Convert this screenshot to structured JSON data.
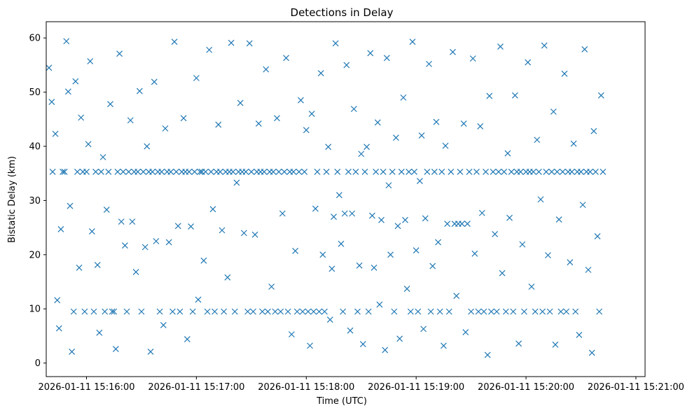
{
  "chart_data": {
    "type": "scatter",
    "title": "Detections in Delay",
    "xlabel": "Time (UTC)",
    "ylabel": "Bistatic Delay (km)",
    "marker": "x",
    "color": "#1f77b4",
    "x_unit": "seconds since 2026-01-11 15:16:00 UTC",
    "xlim": [
      -22,
      305
    ],
    "ylim": [
      -2.5,
      63
    ],
    "x_ticks": [
      {
        "value": 0,
        "label": "2026-01-11 15:16:00"
      },
      {
        "value": 60,
        "label": "2026-01-11 15:17:00"
      },
      {
        "value": 120,
        "label": "2026-01-11 15:18:00"
      },
      {
        "value": 180,
        "label": "2026-01-11 15:19:00"
      },
      {
        "value": 240,
        "label": "2026-01-11 15:20:00"
      },
      {
        "value": 300,
        "label": "2026-01-11 15:21:00"
      }
    ],
    "y_ticks": [
      {
        "value": 0,
        "label": "0"
      },
      {
        "value": 10,
        "label": "10"
      },
      {
        "value": 20,
        "label": "20"
      },
      {
        "value": 30,
        "label": "30"
      },
      {
        "value": 40,
        "label": "40"
      },
      {
        "value": 50,
        "label": "50"
      },
      {
        "value": 60,
        "label": "60"
      }
    ],
    "series": [
      {
        "name": "detections",
        "points": [
          [
            -20.5,
            54.5
          ],
          [
            -19,
            48.2
          ],
          [
            -18.5,
            35.3
          ],
          [
            -17,
            42.3
          ],
          [
            -16,
            11.6
          ],
          [
            -15,
            6.4
          ],
          [
            -14,
            24.7
          ],
          [
            -13,
            35.3
          ],
          [
            -12,
            35.3
          ],
          [
            -11,
            59.4
          ],
          [
            -10,
            50.1
          ],
          [
            -9,
            29.0
          ],
          [
            -8,
            2.1
          ],
          [
            -7,
            9.5
          ],
          [
            -6,
            52.0
          ],
          [
            -5,
            35.3
          ],
          [
            -4,
            17.6
          ],
          [
            -3,
            45.3
          ],
          [
            -2,
            35.3
          ],
          [
            -1,
            9.5
          ],
          [
            0,
            35.3
          ],
          [
            1,
            40.4
          ],
          [
            2,
            55.7
          ],
          [
            3,
            24.3
          ],
          [
            4,
            9.5
          ],
          [
            5,
            35.3
          ],
          [
            6,
            18.1
          ],
          [
            7,
            5.6
          ],
          [
            8,
            35.3
          ],
          [
            9,
            38.0
          ],
          [
            10,
            9.5
          ],
          [
            11,
            28.3
          ],
          [
            12,
            35.3
          ],
          [
            13,
            47.8
          ],
          [
            14,
            9.5
          ],
          [
            15,
            9.5
          ],
          [
            16,
            2.6
          ],
          [
            17,
            35.3
          ],
          [
            18,
            57.1
          ],
          [
            19,
            26.1
          ],
          [
            20,
            35.3
          ],
          [
            21,
            21.7
          ],
          [
            22,
            9.5
          ],
          [
            23,
            35.3
          ],
          [
            24,
            44.8
          ],
          [
            25,
            26.1
          ],
          [
            26,
            35.3
          ],
          [
            27,
            16.8
          ],
          [
            28,
            35.3
          ],
          [
            29,
            50.2
          ],
          [
            30,
            9.5
          ],
          [
            31,
            35.3
          ],
          [
            32,
            21.4
          ],
          [
            33,
            40.0
          ],
          [
            34,
            35.3
          ],
          [
            35,
            2.1
          ],
          [
            36,
            35.3
          ],
          [
            37,
            51.9
          ],
          [
            38,
            22.5
          ],
          [
            39,
            35.3
          ],
          [
            40,
            9.5
          ],
          [
            41,
            35.3
          ],
          [
            42,
            7.0
          ],
          [
            43,
            43.3
          ],
          [
            44,
            35.3
          ],
          [
            45,
            22.3
          ],
          [
            46,
            35.3
          ],
          [
            47,
            9.5
          ],
          [
            48,
            59.3
          ],
          [
            49,
            35.3
          ],
          [
            50,
            25.3
          ],
          [
            51,
            9.5
          ],
          [
            52,
            35.3
          ],
          [
            53,
            45.2
          ],
          [
            54,
            35.3
          ],
          [
            55,
            4.4
          ],
          [
            56,
            35.3
          ],
          [
            57,
            25.2
          ],
          [
            58,
            9.5
          ],
          [
            59,
            35.3
          ],
          [
            60,
            52.6
          ],
          [
            61,
            11.7
          ],
          [
            62,
            35.3
          ],
          [
            63,
            35.3
          ],
          [
            64,
            18.9
          ],
          [
            65,
            35.3
          ],
          [
            66,
            9.5
          ],
          [
            67,
            57.8
          ],
          [
            68,
            35.3
          ],
          [
            69,
            28.4
          ],
          [
            70,
            9.5
          ],
          [
            71,
            35.3
          ],
          [
            72,
            44.0
          ],
          [
            73,
            35.3
          ],
          [
            74,
            24.5
          ],
          [
            75,
            9.5
          ],
          [
            76,
            35.3
          ],
          [
            77,
            15.8
          ],
          [
            78,
            35.3
          ],
          [
            79,
            59.1
          ],
          [
            80,
            35.3
          ],
          [
            81,
            9.5
          ],
          [
            82,
            33.3
          ],
          [
            83,
            35.3
          ],
          [
            84,
            48.0
          ],
          [
            85,
            35.3
          ],
          [
            86,
            24.0
          ],
          [
            87,
            35.3
          ],
          [
            88,
            9.5
          ],
          [
            89,
            59.0
          ],
          [
            90,
            35.3
          ],
          [
            91,
            9.5
          ],
          [
            92,
            23.7
          ],
          [
            93,
            35.3
          ],
          [
            94,
            44.2
          ],
          [
            95,
            35.3
          ],
          [
            96,
            9.5
          ],
          [
            97,
            35.3
          ],
          [
            98,
            54.2
          ],
          [
            99,
            9.5
          ],
          [
            100,
            35.3
          ],
          [
            101,
            14.1
          ],
          [
            102,
            35.3
          ],
          [
            103,
            9.5
          ],
          [
            104,
            45.2
          ],
          [
            105,
            35.3
          ],
          [
            106,
            9.5
          ],
          [
            107,
            27.6
          ],
          [
            108,
            35.3
          ],
          [
            109,
            56.3
          ],
          [
            110,
            9.5
          ],
          [
            111,
            35.3
          ],
          [
            112,
            5.3
          ],
          [
            113,
            35.3
          ],
          [
            114,
            20.7
          ],
          [
            115,
            9.5
          ],
          [
            116,
            35.3
          ],
          [
            117,
            48.5
          ],
          [
            118,
            9.5
          ],
          [
            119,
            35.3
          ],
          [
            120,
            43.0
          ],
          [
            121,
            9.5
          ],
          [
            122,
            3.2
          ],
          [
            123,
            46.0
          ],
          [
            124,
            9.5
          ],
          [
            125,
            28.5
          ],
          [
            126,
            35.3
          ],
          [
            127,
            9.5
          ],
          [
            128,
            53.5
          ],
          [
            129,
            20.0
          ],
          [
            130,
            9.5
          ],
          [
            131,
            35.3
          ],
          [
            132,
            39.9
          ],
          [
            133,
            8.0
          ],
          [
            134,
            17.4
          ],
          [
            135,
            27.0
          ],
          [
            136,
            59.0
          ],
          [
            137,
            35.3
          ],
          [
            138,
            31.0
          ],
          [
            139,
            22.0
          ],
          [
            140,
            9.5
          ],
          [
            141,
            27.6
          ],
          [
            142,
            55.0
          ],
          [
            143,
            35.3
          ],
          [
            144,
            6.0
          ],
          [
            145,
            27.6
          ],
          [
            146,
            46.9
          ],
          [
            147,
            35.3
          ],
          [
            148,
            9.5
          ],
          [
            149,
            18.0
          ],
          [
            150,
            38.6
          ],
          [
            151,
            3.5
          ],
          [
            152,
            35.3
          ],
          [
            153,
            39.9
          ],
          [
            154,
            9.5
          ],
          [
            155,
            57.2
          ],
          [
            156,
            27.2
          ],
          [
            157,
            17.6
          ],
          [
            158,
            35.3
          ],
          [
            159,
            44.4
          ],
          [
            160,
            10.8
          ],
          [
            161,
            26.4
          ],
          [
            162,
            35.3
          ],
          [
            163,
            2.4
          ],
          [
            164,
            56.3
          ],
          [
            165,
            32.8
          ],
          [
            166,
            20.0
          ],
          [
            167,
            35.3
          ],
          [
            168,
            9.5
          ],
          [
            169,
            41.6
          ],
          [
            170,
            25.3
          ],
          [
            171,
            4.5
          ],
          [
            172,
            35.3
          ],
          [
            173,
            49.0
          ],
          [
            174,
            26.4
          ],
          [
            175,
            13.7
          ],
          [
            176,
            35.3
          ],
          [
            177,
            9.5
          ],
          [
            178,
            59.3
          ],
          [
            179,
            35.3
          ],
          [
            180,
            20.8
          ],
          [
            181,
            9.5
          ],
          [
            182,
            33.6
          ],
          [
            183,
            42.0
          ],
          [
            184,
            6.3
          ],
          [
            185,
            26.7
          ],
          [
            186,
            35.3
          ],
          [
            187,
            55.2
          ],
          [
            188,
            9.5
          ],
          [
            189,
            17.9
          ],
          [
            190,
            35.3
          ],
          [
            191,
            44.5
          ],
          [
            192,
            22.3
          ],
          [
            193,
            9.5
          ],
          [
            194,
            35.3
          ],
          [
            195,
            3.2
          ],
          [
            196,
            40.1
          ],
          [
            197,
            25.7
          ],
          [
            198,
            9.5
          ],
          [
            199,
            35.3
          ],
          [
            200,
            57.4
          ],
          [
            201,
            25.7
          ],
          [
            202,
            12.4
          ],
          [
            203,
            25.7
          ],
          [
            204,
            35.3
          ],
          [
            205,
            25.7
          ],
          [
            206,
            44.2
          ],
          [
            207,
            5.7
          ],
          [
            208,
            25.7
          ],
          [
            209,
            35.3
          ],
          [
            210,
            9.5
          ],
          [
            211,
            56.2
          ],
          [
            212,
            20.2
          ],
          [
            213,
            35.3
          ],
          [
            214,
            9.5
          ],
          [
            215,
            43.7
          ],
          [
            216,
            27.7
          ],
          [
            217,
            9.5
          ],
          [
            218,
            35.3
          ],
          [
            219,
            1.5
          ],
          [
            220,
            49.3
          ],
          [
            221,
            9.5
          ],
          [
            222,
            35.3
          ],
          [
            223,
            23.8
          ],
          [
            224,
            9.5
          ],
          [
            225,
            35.3
          ],
          [
            226,
            58.4
          ],
          [
            227,
            16.6
          ],
          [
            228,
            35.3
          ],
          [
            229,
            9.5
          ],
          [
            230,
            38.7
          ],
          [
            231,
            26.8
          ],
          [
            232,
            35.3
          ],
          [
            233,
            9.5
          ],
          [
            234,
            49.4
          ],
          [
            235,
            35.3
          ],
          [
            236,
            3.6
          ],
          [
            237,
            35.3
          ],
          [
            238,
            21.9
          ],
          [
            239,
            9.5
          ],
          [
            240,
            35.3
          ],
          [
            241,
            55.5
          ],
          [
            242,
            35.3
          ],
          [
            243,
            14.1
          ],
          [
            244,
            35.3
          ],
          [
            245,
            9.5
          ],
          [
            246,
            41.2
          ],
          [
            247,
            35.3
          ],
          [
            248,
            30.2
          ],
          [
            249,
            9.5
          ],
          [
            250,
            58.6
          ],
          [
            251,
            35.3
          ],
          [
            252,
            19.9
          ],
          [
            253,
            9.5
          ],
          [
            254,
            35.3
          ],
          [
            255,
            46.4
          ],
          [
            256,
            3.4
          ],
          [
            257,
            35.3
          ],
          [
            258,
            26.5
          ],
          [
            259,
            9.5
          ],
          [
            260,
            35.3
          ],
          [
            261,
            53.4
          ],
          [
            262,
            9.5
          ],
          [
            263,
            35.3
          ],
          [
            264,
            18.6
          ],
          [
            265,
            35.3
          ],
          [
            266,
            40.5
          ],
          [
            267,
            9.5
          ],
          [
            268,
            35.3
          ],
          [
            269,
            5.2
          ],
          [
            270,
            35.3
          ],
          [
            271,
            29.2
          ],
          [
            272,
            57.9
          ],
          [
            273,
            35.3
          ],
          [
            274,
            17.2
          ],
          [
            275,
            35.3
          ],
          [
            276,
            1.9
          ],
          [
            277,
            42.8
          ],
          [
            278,
            35.3
          ],
          [
            279,
            23.4
          ],
          [
            280,
            9.5
          ],
          [
            281,
            49.4
          ],
          [
            282,
            35.3
          ]
        ]
      }
    ]
  }
}
